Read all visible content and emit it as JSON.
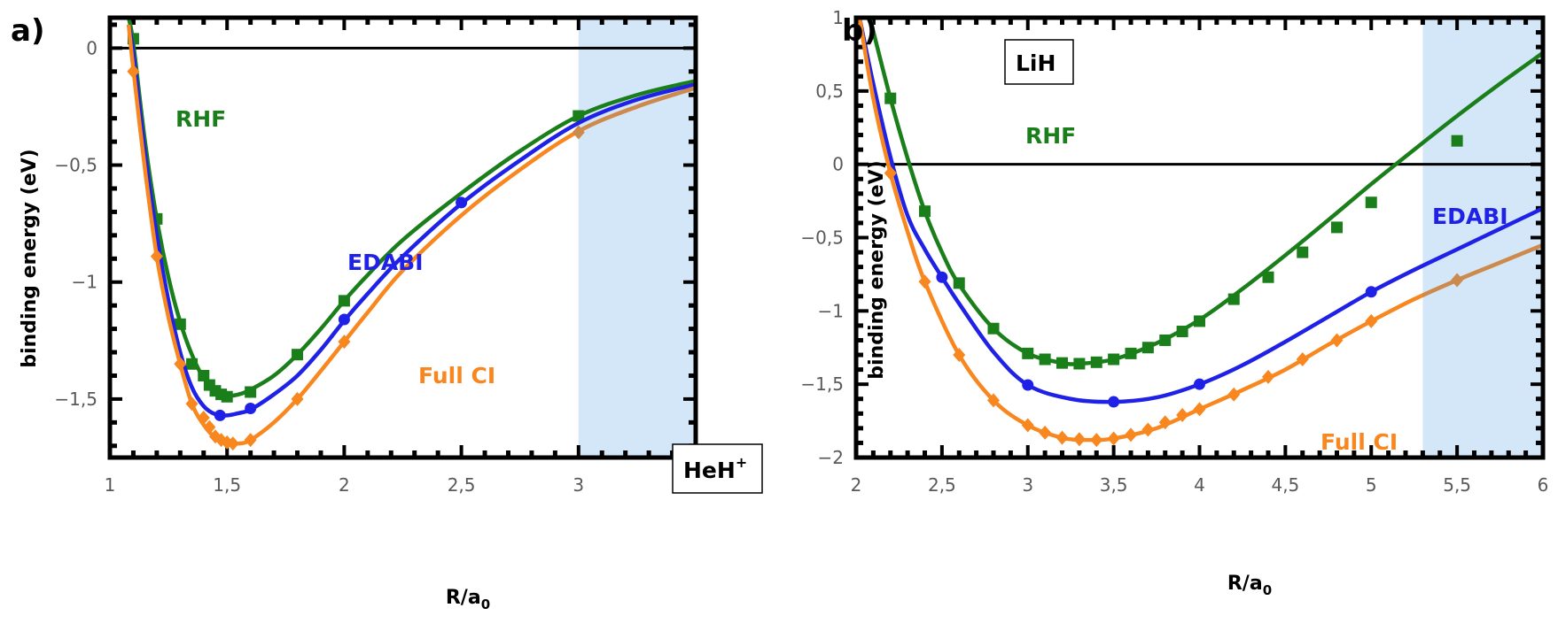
{
  "chart_data": [
    {
      "id": "a",
      "type": "line",
      "panel_label": "a)",
      "molecule": "HeH",
      "molecule_superscript": "+",
      "xlabel_main": "R/a",
      "xlabel_sub": "0",
      "ylabel": "binding energy (eV)",
      "xlim": [
        1.0,
        3.5
      ],
      "ylim": [
        -1.75,
        0.13
      ],
      "xticks": [
        1,
        1.5,
        2,
        2.5,
        3,
        3.5
      ],
      "xtick_labels": [
        "1",
        "1,5",
        "2",
        "2,5",
        "3",
        "3,5"
      ],
      "yticks": [
        0,
        -0.5,
        -1,
        -1.5
      ],
      "ytick_labels": [
        "0",
        "−0,5",
        "−1",
        "−1,5"
      ],
      "shaded_region": [
        3.0,
        3.5
      ],
      "shade_color": "#d3e7f8",
      "series": [
        {
          "name": "RHF",
          "color": "#1a7f1a",
          "marker": "square",
          "curve": [
            [
              1.08,
              0.13
            ],
            [
              1.1,
              0.02
            ],
            [
              1.15,
              -0.4
            ],
            [
              1.2,
              -0.73
            ],
            [
              1.25,
              -0.98
            ],
            [
              1.3,
              -1.17
            ],
            [
              1.35,
              -1.31
            ],
            [
              1.4,
              -1.41
            ],
            [
              1.45,
              -1.46
            ],
            [
              1.5,
              -1.485
            ],
            [
              1.55,
              -1.48
            ],
            [
              1.6,
              -1.46
            ],
            [
              1.7,
              -1.4
            ],
            [
              1.8,
              -1.31
            ],
            [
              1.9,
              -1.2
            ],
            [
              2.0,
              -1.08
            ],
            [
              2.1,
              -0.97
            ],
            [
              2.25,
              -0.82
            ],
            [
              2.5,
              -0.62
            ],
            [
              2.75,
              -0.44
            ],
            [
              3.0,
              -0.29
            ],
            [
              3.25,
              -0.2
            ],
            [
              3.5,
              -0.14
            ]
          ],
          "markers_x": [
            1.1,
            1.2,
            1.3,
            1.35,
            1.4,
            1.425,
            1.45,
            1.475,
            1.5,
            1.6,
            1.8,
            2.0,
            3.0
          ],
          "markers_y": [
            0.04,
            -0.73,
            -1.18,
            -1.35,
            -1.4,
            -1.44,
            -1.465,
            -1.48,
            -1.49,
            -1.47,
            -1.31,
            -1.08,
            -0.29
          ]
        },
        {
          "name": "EDABI",
          "color": "#1f22e6",
          "marker": "circle",
          "curve": [
            [
              1.08,
              0.1
            ],
            [
              1.1,
              -0.02
            ],
            [
              1.15,
              -0.45
            ],
            [
              1.2,
              -0.8
            ],
            [
              1.25,
              -1.08
            ],
            [
              1.3,
              -1.3
            ],
            [
              1.35,
              -1.45
            ],
            [
              1.4,
              -1.53
            ],
            [
              1.45,
              -1.565
            ],
            [
              1.5,
              -1.57
            ],
            [
              1.55,
              -1.56
            ],
            [
              1.6,
              -1.545
            ],
            [
              1.7,
              -1.48
            ],
            [
              1.8,
              -1.4
            ],
            [
              1.9,
              -1.29
            ],
            [
              2.0,
              -1.165
            ],
            [
              2.1,
              -1.05
            ],
            [
              2.25,
              -0.89
            ],
            [
              2.5,
              -0.665
            ],
            [
              2.75,
              -0.48
            ],
            [
              3.0,
              -0.32
            ],
            [
              3.25,
              -0.22
            ],
            [
              3.5,
              -0.155
            ]
          ],
          "markers_x": [
            1.47,
            1.6,
            2.0,
            2.5
          ],
          "markers_y": [
            -1.57,
            -1.54,
            -1.16,
            -0.66
          ]
        },
        {
          "name": "Full CI",
          "color": "#f7871e",
          "marker": "diamond",
          "curve": [
            [
              1.08,
              0.1
            ],
            [
              1.1,
              -0.09
            ],
            [
              1.15,
              -0.52
            ],
            [
              1.2,
              -0.89
            ],
            [
              1.25,
              -1.15
            ],
            [
              1.3,
              -1.35
            ],
            [
              1.35,
              -1.52
            ],
            [
              1.4,
              -1.61
            ],
            [
              1.45,
              -1.665
            ],
            [
              1.5,
              -1.685
            ],
            [
              1.55,
              -1.69
            ],
            [
              1.6,
              -1.675
            ],
            [
              1.7,
              -1.6
            ],
            [
              1.8,
              -1.5
            ],
            [
              1.9,
              -1.38
            ],
            [
              2.0,
              -1.255
            ],
            [
              2.1,
              -1.13
            ],
            [
              2.25,
              -0.95
            ],
            [
              2.5,
              -0.715
            ],
            [
              2.75,
              -0.52
            ],
            [
              3.0,
              -0.355
            ],
            [
              3.25,
              -0.25
            ],
            [
              3.5,
              -0.17
            ]
          ],
          "markers_x": [
            1.1,
            1.2,
            1.3,
            1.35,
            1.4,
            1.425,
            1.45,
            1.475,
            1.5,
            1.525,
            1.6,
            1.8,
            2.0,
            3.0
          ],
          "markers_y": [
            -0.1,
            -0.89,
            -1.35,
            -1.52,
            -1.58,
            -1.62,
            -1.66,
            -1.675,
            -1.685,
            -1.69,
            -1.675,
            -1.5,
            -1.255,
            -0.36
          ]
        }
      ]
    },
    {
      "id": "b",
      "type": "line",
      "panel_label": "b)",
      "molecule": "LiH",
      "molecule_superscript": "",
      "xlabel_main": "R/a",
      "xlabel_sub": "0",
      "ylabel": "binding energy (eV)",
      "xlim": [
        2.0,
        6.0
      ],
      "ylim": [
        -2.0,
        1.0
      ],
      "xticks": [
        2,
        2.5,
        3,
        3.5,
        4,
        4.5,
        5,
        5.5,
        6
      ],
      "xtick_labels": [
        "2",
        "2,5",
        "3",
        "3,5",
        "4",
        "4,5",
        "5",
        "5,5",
        "6"
      ],
      "yticks": [
        1,
        0.5,
        0,
        -0.5,
        -1,
        -1.5,
        -2
      ],
      "ytick_labels": [
        "1",
        "0,5",
        "0",
        "−0,5",
        "−1",
        "−1,5",
        "−2"
      ],
      "shaded_region": [
        5.3,
        6.0
      ],
      "shade_color": "#d3e7f8",
      "series": [
        {
          "name": "RHF",
          "color": "#1a7f1a",
          "marker": "square",
          "curve": [
            [
              2.08,
              1.0
            ],
            [
              2.2,
              0.45
            ],
            [
              2.3,
              0.04
            ],
            [
              2.4,
              -0.32
            ],
            [
              2.5,
              -0.6
            ],
            [
              2.6,
              -0.82
            ],
            [
              2.8,
              -1.12
            ],
            [
              3.0,
              -1.29
            ],
            [
              3.2,
              -1.355
            ],
            [
              3.3,
              -1.36
            ],
            [
              3.5,
              -1.33
            ],
            [
              3.75,
              -1.22
            ],
            [
              4.0,
              -1.06
            ],
            [
              4.25,
              -0.85
            ],
            [
              4.5,
              -0.62
            ],
            [
              4.75,
              -0.38
            ],
            [
              5.0,
              -0.135
            ],
            [
              5.25,
              0.1
            ],
            [
              5.5,
              0.33
            ],
            [
              5.75,
              0.55
            ],
            [
              6.0,
              0.76
            ]
          ],
          "markers_x": [
            2.2,
            2.4,
            2.6,
            2.8,
            3.0,
            3.1,
            3.2,
            3.3,
            3.4,
            3.5,
            3.6,
            3.7,
            3.8,
            3.9,
            4.0,
            4.2,
            4.4,
            4.6,
            4.8,
            5.0,
            5.5
          ],
          "markers_y": [
            0.45,
            -0.32,
            -0.81,
            -1.12,
            -1.29,
            -1.33,
            -1.355,
            -1.36,
            -1.35,
            -1.33,
            -1.29,
            -1.25,
            -1.2,
            -1.14,
            -1.07,
            -0.92,
            -0.77,
            -0.6,
            -0.43,
            -0.26,
            0.16
          ]
        },
        {
          "name": "EDABI",
          "color": "#1f22e6",
          "marker": "circle",
          "curve": [
            [
              2.02,
              1.0
            ],
            [
              2.1,
              0.55
            ],
            [
              2.2,
              0.05
            ],
            [
              2.3,
              -0.35
            ],
            [
              2.4,
              -0.58
            ],
            [
              2.5,
              -0.77
            ],
            [
              2.6,
              -0.95
            ],
            [
              2.8,
              -1.28
            ],
            [
              3.0,
              -1.505
            ],
            [
              3.25,
              -1.6
            ],
            [
              3.5,
              -1.62
            ],
            [
              3.75,
              -1.59
            ],
            [
              4.0,
              -1.5
            ],
            [
              4.25,
              -1.37
            ],
            [
              4.5,
              -1.21
            ],
            [
              4.75,
              -1.04
            ],
            [
              5.0,
              -0.87
            ],
            [
              5.25,
              -0.72
            ],
            [
              5.5,
              -0.58
            ],
            [
              5.75,
              -0.44
            ],
            [
              6.0,
              -0.3
            ]
          ],
          "markers_x": [
            2.5,
            3.0,
            3.5,
            4.0,
            5.0
          ],
          "markers_y": [
            -0.77,
            -1.505,
            -1.62,
            -1.5,
            -0.87
          ]
        },
        {
          "name": "Full CI",
          "color": "#f7871e",
          "marker": "diamond",
          "curve": [
            [
              2.02,
              1.0
            ],
            [
              2.1,
              0.45
            ],
            [
              2.2,
              -0.06
            ],
            [
              2.3,
              -0.46
            ],
            [
              2.4,
              -0.8
            ],
            [
              2.6,
              -1.3
            ],
            [
              2.8,
              -1.61
            ],
            [
              3.0,
              -1.78
            ],
            [
              3.2,
              -1.865
            ],
            [
              3.35,
              -1.88
            ],
            [
              3.5,
              -1.87
            ],
            [
              3.75,
              -1.8
            ],
            [
              4.0,
              -1.67
            ],
            [
              4.25,
              -1.54
            ],
            [
              4.5,
              -1.4
            ],
            [
              4.75,
              -1.23
            ],
            [
              5.0,
              -1.07
            ],
            [
              5.25,
              -0.92
            ],
            [
              5.5,
              -0.79
            ],
            [
              5.75,
              -0.67
            ],
            [
              6.0,
              -0.55
            ]
          ],
          "markers_x": [
            2.2,
            2.4,
            2.6,
            2.8,
            3.0,
            3.1,
            3.2,
            3.3,
            3.4,
            3.5,
            3.6,
            3.7,
            3.8,
            3.9,
            4.0,
            4.2,
            4.4,
            4.6,
            4.8,
            5.0,
            5.5
          ],
          "markers_y": [
            -0.06,
            -0.8,
            -1.3,
            -1.61,
            -1.78,
            -1.83,
            -1.865,
            -1.875,
            -1.88,
            -1.87,
            -1.845,
            -1.81,
            -1.76,
            -1.71,
            -1.67,
            -1.57,
            -1.45,
            -1.33,
            -1.2,
            -1.07,
            -0.79
          ]
        }
      ]
    }
  ]
}
